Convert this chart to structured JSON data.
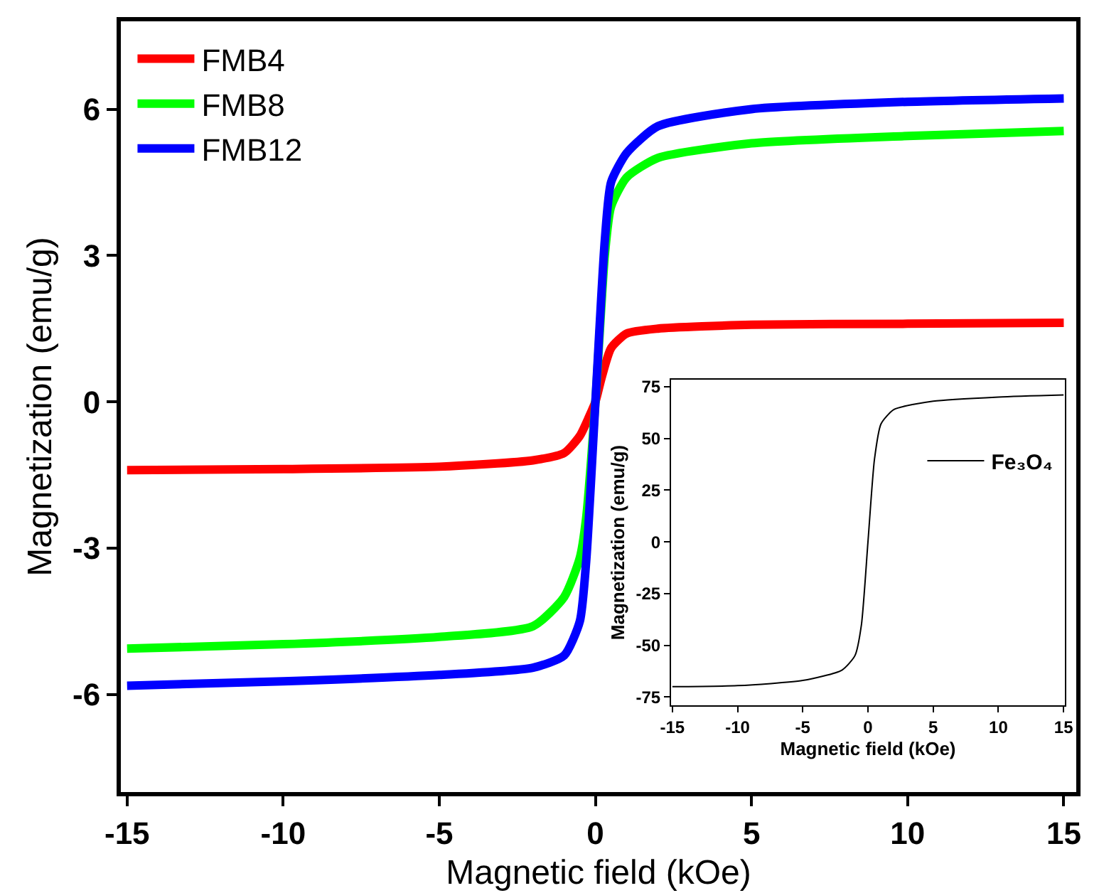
{
  "chart_data": [
    {
      "type": "line",
      "xlabel": "Magnetic field (kOe)",
      "ylabel": "Magnetization (emu/g)",
      "xlim": [
        -15.2,
        15.4
      ],
      "ylim": [
        -8,
        7.8
      ],
      "xticks": [
        -15,
        -10,
        -5,
        0,
        5,
        10,
        15
      ],
      "yticks": [
        -6,
        -3,
        0,
        3,
        6
      ],
      "grid": false,
      "legend": "top left",
      "marker": "none",
      "line_style": "solid",
      "series": [
        {
          "name": "FMB4",
          "color": "#ff0000",
          "x": [
            -15,
            -10,
            -5,
            -2,
            -1,
            -0.5,
            -0.2,
            0,
            0.2,
            0.5,
            1,
            2,
            5,
            10,
            15
          ],
          "values": [
            -1.4,
            -1.38,
            -1.33,
            -1.2,
            -1.05,
            -0.7,
            -0.3,
            0,
            0.5,
            1.1,
            1.4,
            1.5,
            1.58,
            1.6,
            1.62
          ]
        },
        {
          "name": "FMB8",
          "color": "#00ff00",
          "x": [
            -15,
            -10,
            -5,
            -2,
            -1,
            -0.5,
            -0.3,
            0,
            0.3,
            0.5,
            1,
            2,
            5,
            10,
            15
          ],
          "values": [
            -5.06,
            -4.97,
            -4.82,
            -4.6,
            -4.0,
            -3.2,
            -2.4,
            0,
            3.0,
            4.0,
            4.6,
            5.0,
            5.3,
            5.45,
            5.55
          ]
        },
        {
          "name": "FMB12",
          "color": "#0000ff",
          "x": [
            -15,
            -10,
            -5,
            -2,
            -1,
            -0.5,
            -0.3,
            0,
            0.3,
            0.5,
            1,
            2,
            5,
            10,
            15
          ],
          "values": [
            -5.82,
            -5.73,
            -5.6,
            -5.45,
            -5.2,
            -4.5,
            -3.3,
            0,
            3.3,
            4.5,
            5.1,
            5.65,
            6.0,
            6.15,
            6.22
          ]
        }
      ]
    },
    {
      "type": "line",
      "xlabel": "Magnetic field (kOe)",
      "ylabel": "Magnetization (emu/g)",
      "xlim": [
        -15.1,
        15.1
      ],
      "ylim": [
        -79,
        78.4
      ],
      "xticks": [
        -15,
        -10,
        -5,
        0,
        5,
        10,
        15
      ],
      "yticks": [
        -75,
        -50,
        -25,
        0,
        25,
        50,
        75
      ],
      "grid": false,
      "legend": "right",
      "marker": "none",
      "line_style": "solid",
      "series": [
        {
          "name": "Fe₃O₄",
          "color": "#000000",
          "x": [
            -15,
            -10,
            -5,
            -2,
            -1,
            -0.5,
            0,
            0.5,
            1,
            2,
            5,
            10,
            15
          ],
          "values": [
            -70,
            -69.5,
            -67,
            -62,
            -55,
            -40,
            0,
            40,
            57,
            64,
            68,
            70,
            71
          ]
        }
      ]
    }
  ]
}
